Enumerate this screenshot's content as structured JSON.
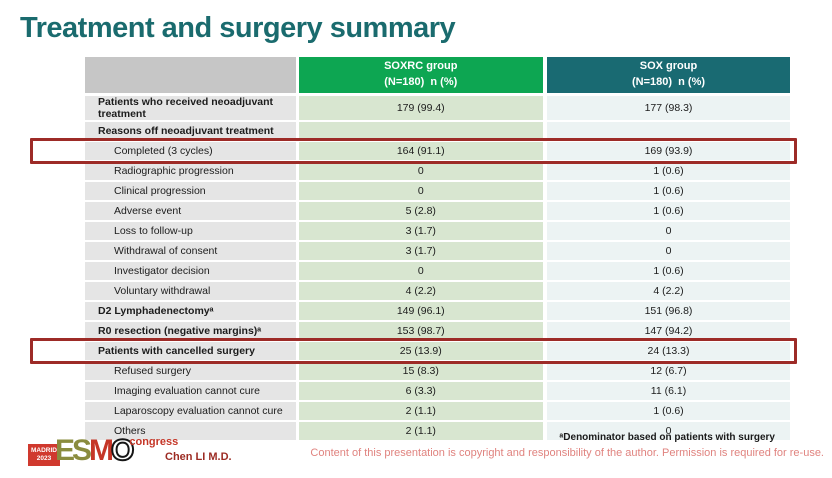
{
  "title": "Treatment and surgery summary",
  "table": {
    "columns": [
      {
        "title": "",
        "subtitle": ""
      },
      {
        "title": "SOXRC group",
        "subtitle": "(N=180)  n (%)"
      },
      {
        "title": "SOX group",
        "subtitle": "(N=180)  n (%)"
      }
    ],
    "rows": [
      {
        "label": "Patients who received neoadjuvant treatment",
        "soxrc": "179 (99.4)",
        "sox": "177 (98.3)",
        "bold": true,
        "indent": false,
        "highlighted": false
      },
      {
        "label": "Reasons off neoadjuvant treatment",
        "soxrc": "",
        "sox": "",
        "bold": true,
        "indent": false,
        "highlighted": false
      },
      {
        "label": "Completed (3 cycles)",
        "soxrc": "164 (91.1)",
        "sox": "169 (93.9)",
        "bold": false,
        "indent": true,
        "highlighted": true
      },
      {
        "label": "Radiographic progression",
        "soxrc": "0",
        "sox": "1 (0.6)",
        "bold": false,
        "indent": true,
        "highlighted": false
      },
      {
        "label": "Clinical progression",
        "soxrc": "0",
        "sox": "1 (0.6)",
        "bold": false,
        "indent": true,
        "highlighted": false
      },
      {
        "label": "Adverse event",
        "soxrc": "5 (2.8)",
        "sox": "1 (0.6)",
        "bold": false,
        "indent": true,
        "highlighted": false
      },
      {
        "label": "Loss to follow-up",
        "soxrc": "3 (1.7)",
        "sox": "0",
        "bold": false,
        "indent": true,
        "highlighted": false
      },
      {
        "label": "Withdrawal of consent",
        "soxrc": "3 (1.7)",
        "sox": "0",
        "bold": false,
        "indent": true,
        "highlighted": false
      },
      {
        "label": "Investigator decision",
        "soxrc": "0",
        "sox": "1 (0.6)",
        "bold": false,
        "indent": true,
        "highlighted": false
      },
      {
        "label": "Voluntary withdrawal",
        "soxrc": "4 (2.2)",
        "sox": "4 (2.2)",
        "bold": false,
        "indent": true,
        "highlighted": false
      },
      {
        "label": "D2 Lymphadenectomyᵃ",
        "soxrc": "149 (96.1)",
        "sox": "151 (96.8)",
        "bold": true,
        "indent": false,
        "highlighted": false
      },
      {
        "label": "R0 resection (negative margins)ᵃ",
        "soxrc": "153 (98.7)",
        "sox": "147 (94.2)",
        "bold": true,
        "indent": false,
        "highlighted": false
      },
      {
        "label": "Patients with cancelled surgery",
        "soxrc": "25 (13.9)",
        "sox": "24 (13.3)",
        "bold": true,
        "indent": false,
        "highlighted": true
      },
      {
        "label": "Refused surgery",
        "soxrc": "15 (8.3)",
        "sox": "12 (6.7)",
        "bold": false,
        "indent": true,
        "highlighted": false
      },
      {
        "label": "Imaging evaluation cannot cure",
        "soxrc": "6 (3.3)",
        "sox": "11 (6.1)",
        "bold": false,
        "indent": true,
        "highlighted": false
      },
      {
        "label": "Laparoscopy evaluation cannot cure",
        "soxrc": "2 (1.1)",
        "sox": "1 (0.6)",
        "bold": false,
        "indent": true,
        "highlighted": false
      },
      {
        "label": "Others",
        "soxrc": "2 (1.1)",
        "sox": "0",
        "bold": false,
        "indent": true,
        "highlighted": false
      }
    ]
  },
  "footer": {
    "logo": {
      "city": "MADRID",
      "year": "2023",
      "letters": [
        "E",
        "S",
        "M",
        "O"
      ],
      "congress": "congress"
    },
    "author": "Chen LI M.D.",
    "footnote": "ᵃDenominator based on patients with surgery",
    "copyright": "Content of this presentation is copyright and responsibility of the author. Permission is required for re-use."
  },
  "colors": {
    "title_teal": "#1a6b6e",
    "soxrc_header_green": "#0da652",
    "sox_header_teal": "#196a72",
    "label_col_gray": "#e5e5e5",
    "soxrc_col_green": "#d8e6d0",
    "sox_col_blue": "#ecf3f3",
    "highlight_red": "#9d2b27",
    "author_red": "#9c2b23",
    "copyright_pink": "#e0837f"
  }
}
